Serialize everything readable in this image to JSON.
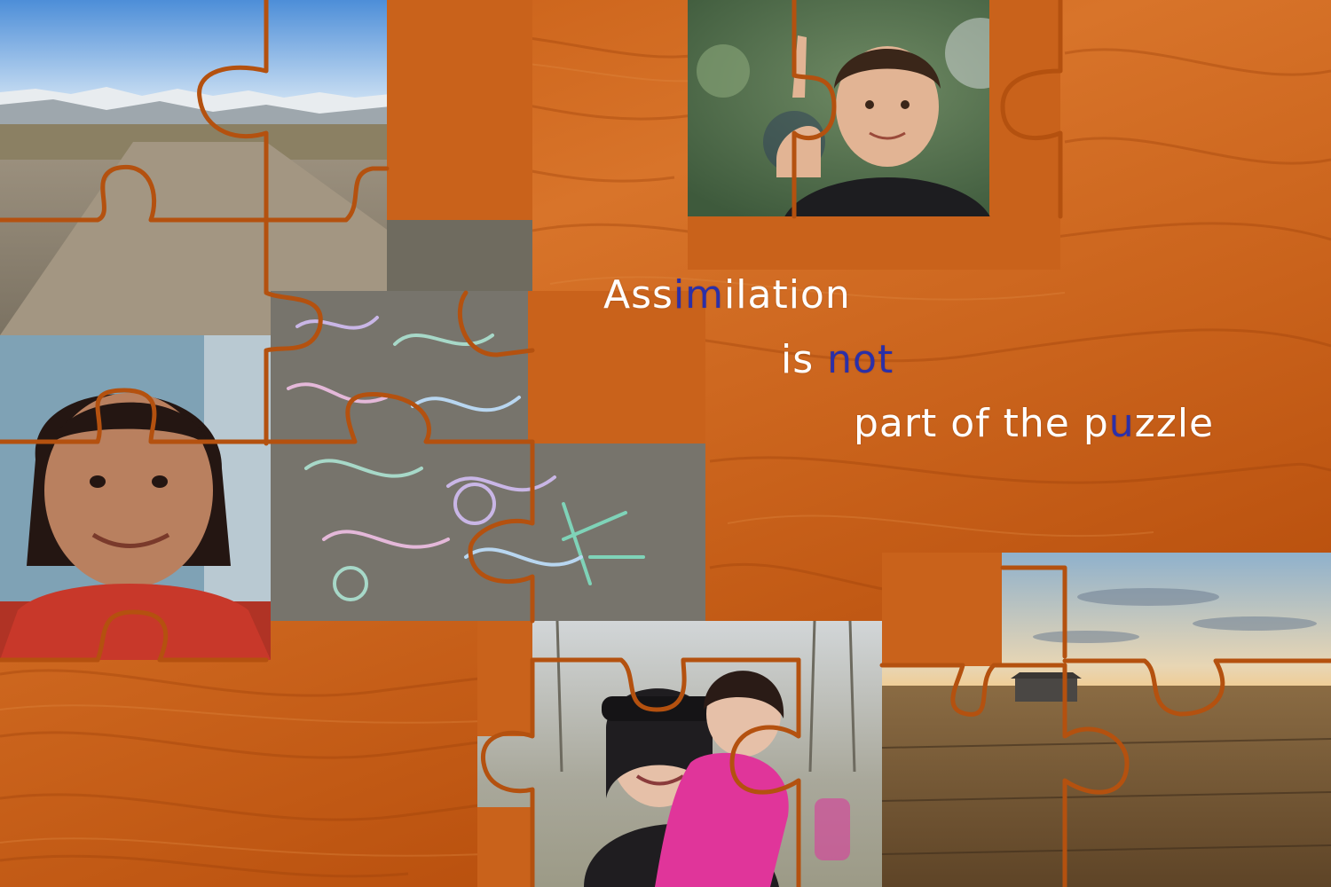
{
  "headline": {
    "line1": {
      "pre": "Ass",
      "hl": "im",
      "post": "ilation"
    },
    "line2": {
      "pre": "is ",
      "hl": "not",
      "post": ""
    },
    "line3": {
      "pre": "part of the p",
      "hl": "u",
      "post": "zzle"
    }
  },
  "photos": [
    {
      "name": "dirt-road-mountains-photo",
      "subject": "dirt road with snowy hills"
    },
    {
      "name": "boy-peace-sign-photo",
      "subject": "smiling boy making peace sign"
    },
    {
      "name": "girl-portrait-photo",
      "subject": "smiling young girl in red"
    },
    {
      "name": "chalk-drawings-photo",
      "subject": "sidewalk chalk drawings"
    },
    {
      "name": "woman-child-piggyback-photo",
      "subject": "woman giving girl a piggyback ride"
    },
    {
      "name": "field-sunset-photo",
      "subject": "grassy field at sunset"
    }
  ],
  "colors": {
    "wood": "#c9621b",
    "puzzle_outline": "#b4510f",
    "headline_text": "#ffffff",
    "headline_accent": "#2b2fa8"
  }
}
